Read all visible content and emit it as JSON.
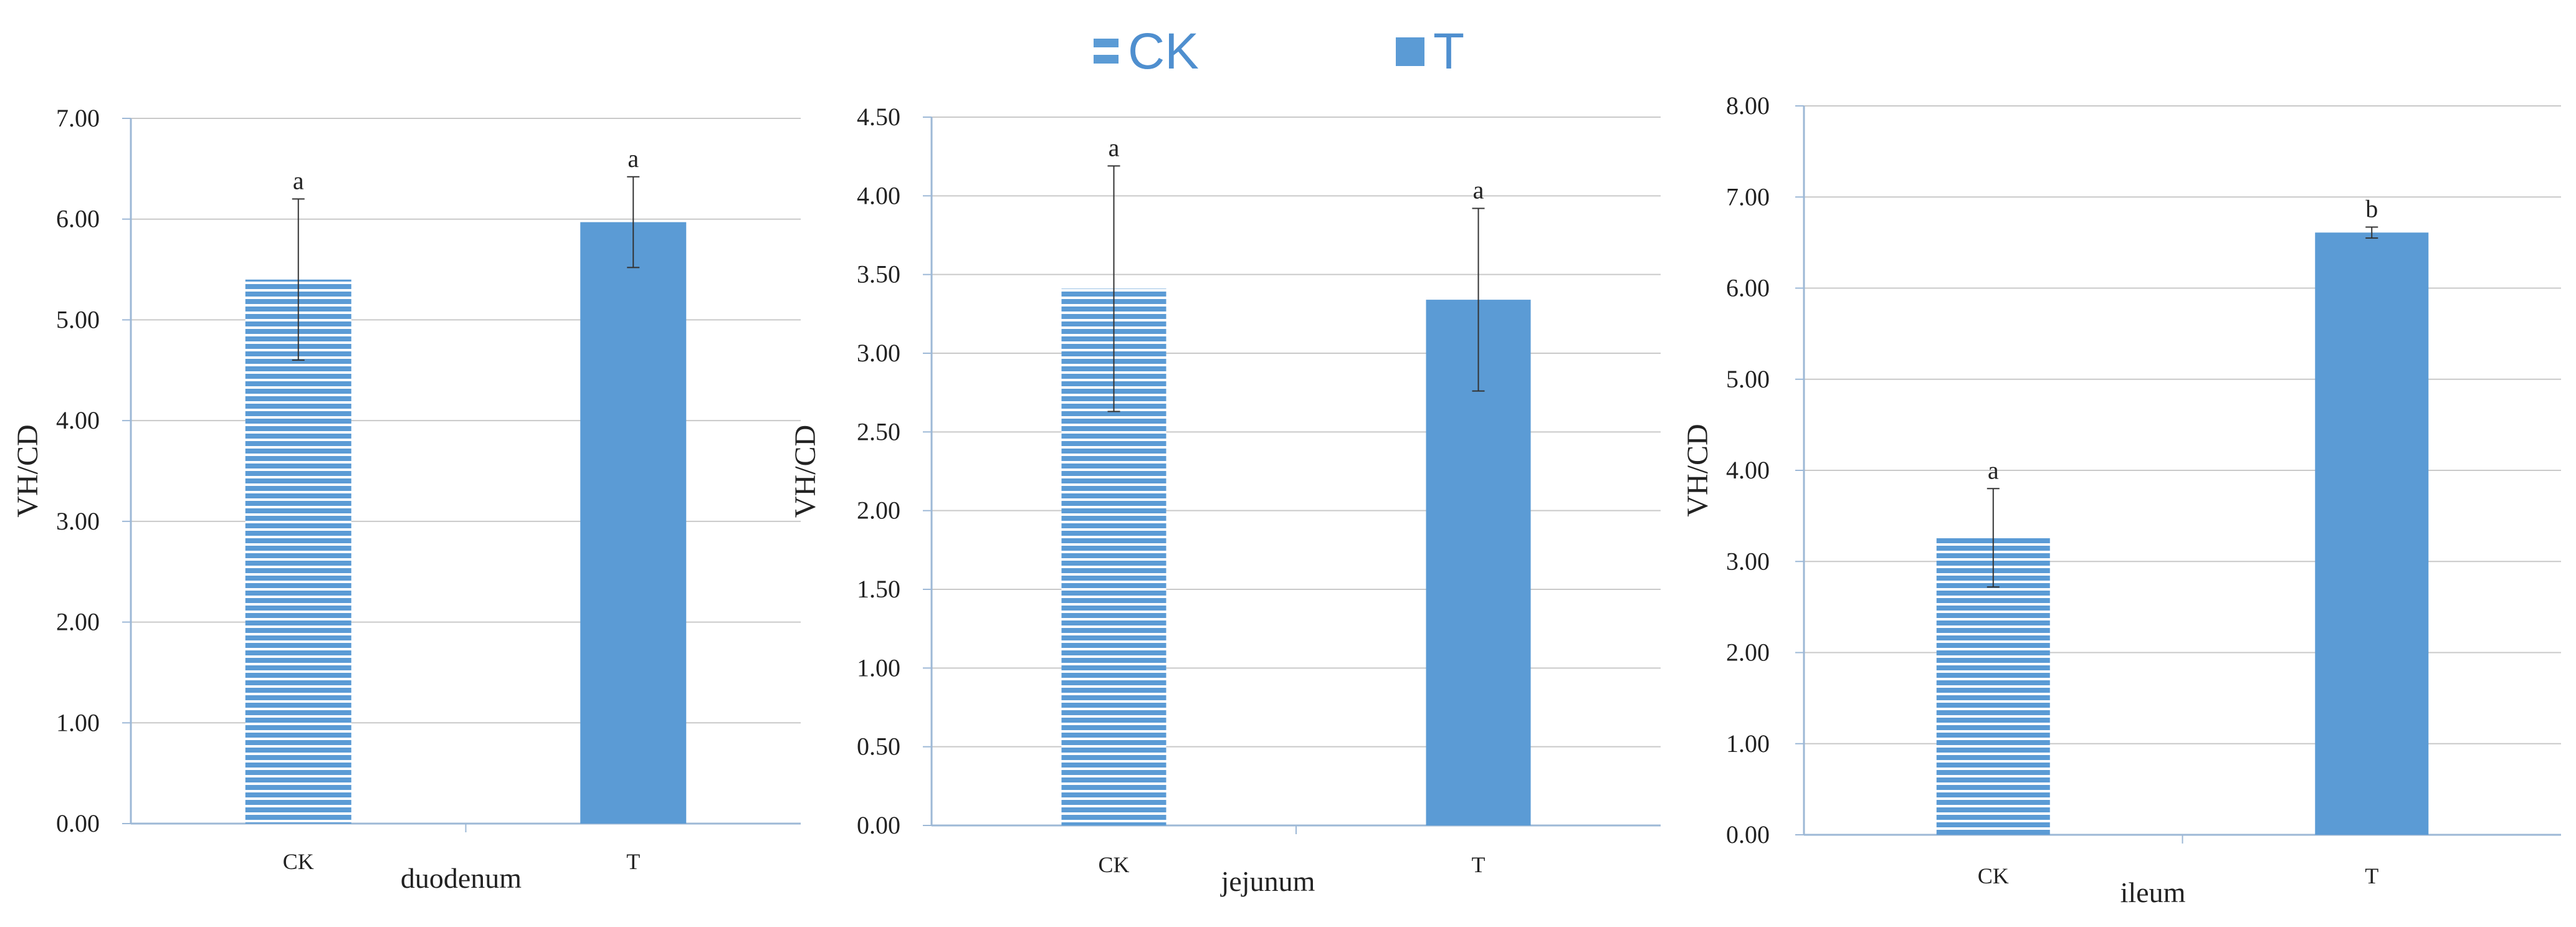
{
  "legend": [
    {
      "name": "CK",
      "pattern": "striped"
    },
    {
      "name": "T",
      "pattern": "solid"
    }
  ],
  "colors": {
    "bar": "#5b9bd5",
    "grid": "#c9c9c9",
    "axis": "#9db8d6",
    "text": "#222222",
    "error": "#333333"
  },
  "chart_data": [
    {
      "type": "bar",
      "title": "",
      "xlabel": "duodenum",
      "ylabel": "VH/CD",
      "ylim": [
        0,
        7
      ],
      "yticks": [
        "0.00",
        "1.00",
        "2.00",
        "3.00",
        "4.00",
        "5.00",
        "6.00",
        "7.00"
      ],
      "categories": [
        "CK",
        "T"
      ],
      "values": [
        5.4,
        5.97
      ],
      "errors": [
        0.8,
        0.45
      ],
      "significance": [
        "a",
        "a"
      ],
      "grid": true
    },
    {
      "type": "bar",
      "title": "",
      "xlabel": "jejunum",
      "ylabel": "VH/CD",
      "ylim": [
        0,
        4.5
      ],
      "yticks": [
        "0.00",
        "0.50",
        "1.00",
        "1.50",
        "2.00",
        "2.50",
        "3.00",
        "3.50",
        "4.00",
        "4.50"
      ],
      "categories": [
        "CK",
        "T"
      ],
      "values": [
        3.41,
        3.34
      ],
      "errors": [
        0.78,
        0.58
      ],
      "significance": [
        "a",
        "a"
      ],
      "grid": true
    },
    {
      "type": "bar",
      "title": "",
      "xlabel": "ileum",
      "ylabel": "VH/CD",
      "ylim": [
        0,
        8
      ],
      "yticks": [
        "0.00",
        "1.00",
        "2.00",
        "3.00",
        "4.00",
        "5.00",
        "6.00",
        "7.00",
        "8.00"
      ],
      "categories": [
        "CK",
        "T"
      ],
      "values": [
        3.26,
        6.61
      ],
      "errors": [
        0.54,
        0.06
      ],
      "significance": [
        "a",
        "b"
      ],
      "grid": true
    }
  ]
}
